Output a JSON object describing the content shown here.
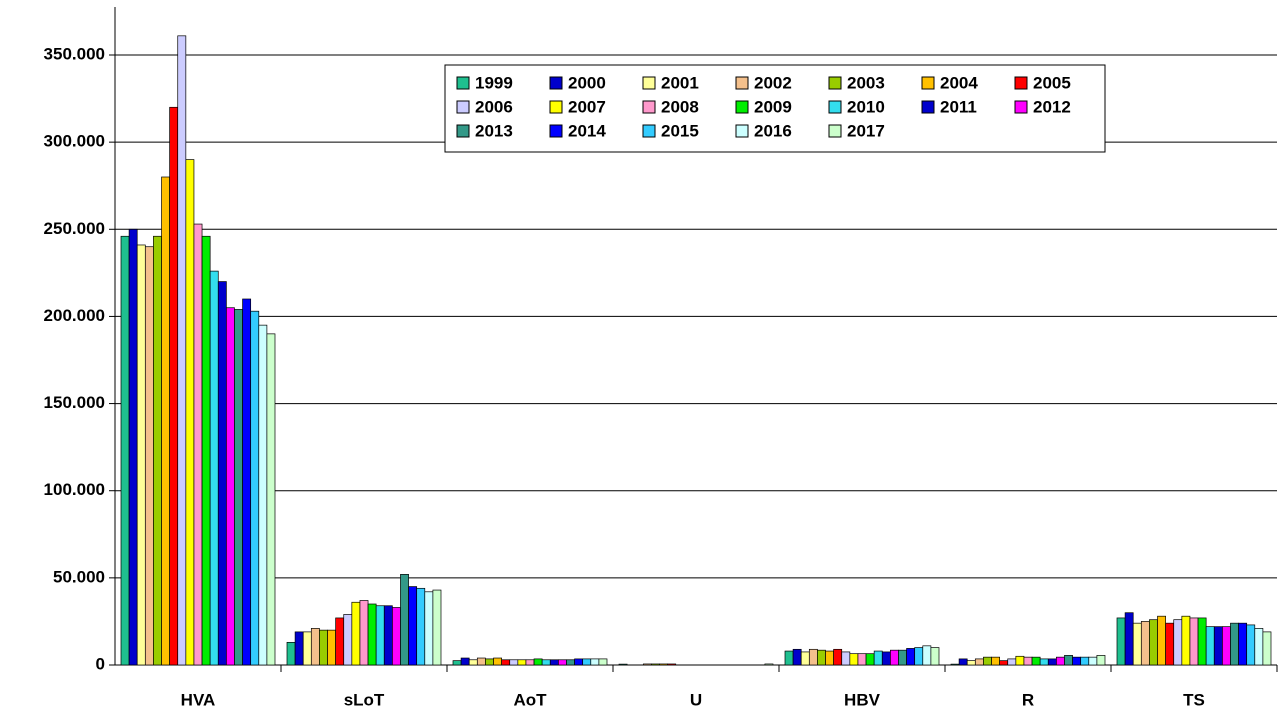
{
  "chart_data": {
    "type": "bar",
    "categories": [
      "HVA",
      "sLoT",
      "AoT",
      "U",
      "HBV",
      "R",
      "TS"
    ],
    "ylim": [
      0,
      350000
    ],
    "yticks": [
      0,
      {
        "value": 50000,
        "label": "50.000"
      },
      {
        "value": 100000,
        "label": "100.000"
      },
      {
        "value": 150000,
        "label": "150.000"
      },
      {
        "value": 200000,
        "label": "200.000"
      },
      {
        "value": 250000,
        "label": "250.000"
      },
      {
        "value": 300000,
        "label": "300.000"
      },
      {
        "value": 350000,
        "label": "350.000"
      }
    ],
    "grid": true,
    "legend": "top-right",
    "series": [
      {
        "name": "1999",
        "color": "#1fbf8f",
        "values": [
          246000,
          13000,
          2500,
          500,
          8000,
          500,
          27000
        ]
      },
      {
        "name": "2000",
        "color": "#0000cc",
        "values": [
          250000,
          19000,
          4000,
          0,
          9000,
          3500,
          30000
        ]
      },
      {
        "name": "2001",
        "color": "#ffff99",
        "values": [
          241000,
          19000,
          3000,
          0,
          7500,
          2500,
          24000
        ]
      },
      {
        "name": "2002",
        "color": "#f4c08c",
        "values": [
          240000,
          21000,
          4000,
          600,
          9000,
          3500,
          25000
        ]
      },
      {
        "name": "2003",
        "color": "#99cc00",
        "values": [
          246000,
          20000,
          3500,
          600,
          8500,
          4500,
          26000
        ]
      },
      {
        "name": "2004",
        "color": "#ffc000",
        "values": [
          280000,
          20000,
          4000,
          600,
          8000,
          4500,
          28000
        ]
      },
      {
        "name": "2005",
        "color": "#ff0000",
        "values": [
          320000,
          27000,
          3000,
          600,
          9000,
          2500,
          24000
        ]
      },
      {
        "name": "2006",
        "color": "#ccccff",
        "values": [
          361000,
          29000,
          3000,
          0,
          7500,
          3500,
          26000
        ]
      },
      {
        "name": "2007",
        "color": "#ffff00",
        "values": [
          290000,
          36000,
          3000,
          0,
          6500,
          5000,
          28000
        ]
      },
      {
        "name": "2008",
        "color": "#ff99cc",
        "values": [
          253000,
          37000,
          3000,
          0,
          6500,
          4500,
          27000
        ]
      },
      {
        "name": "2009",
        "color": "#00ee00",
        "values": [
          246000,
          35000,
          3500,
          0,
          6500,
          4500,
          27000
        ]
      },
      {
        "name": "2010",
        "color": "#33ddee",
        "values": [
          226000,
          34000,
          3000,
          0,
          8000,
          3500,
          22000
        ]
      },
      {
        "name": "2011",
        "color": "#0000cc",
        "values": [
          220000,
          34000,
          3000,
          0,
          7500,
          3500,
          22000
        ]
      },
      {
        "name": "2012",
        "color": "#ff00ff",
        "values": [
          205000,
          33000,
          3000,
          0,
          8500,
          4500,
          22000
        ]
      },
      {
        "name": "2013",
        "color": "#339988",
        "values": [
          204000,
          52000,
          3000,
          0,
          8500,
          5500,
          24000
        ]
      },
      {
        "name": "2014",
        "color": "#0000ff",
        "values": [
          210000,
          45000,
          3500,
          0,
          9500,
          4500,
          24000
        ]
      },
      {
        "name": "2015",
        "color": "#33ccff",
        "values": [
          203000,
          44000,
          3500,
          0,
          10000,
          4500,
          23000
        ]
      },
      {
        "name": "2016",
        "color": "#ccffff",
        "values": [
          195000,
          42000,
          3500,
          0,
          11000,
          4500,
          21000
        ]
      },
      {
        "name": "2017",
        "color": "#ccffcc",
        "values": [
          190000,
          43000,
          3500,
          600,
          10000,
          5500,
          19000
        ]
      }
    ]
  }
}
